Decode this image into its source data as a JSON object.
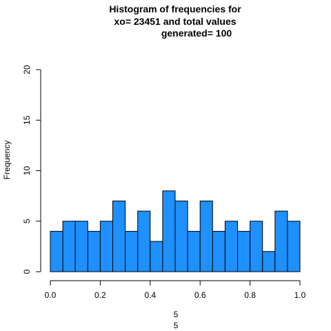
{
  "chart_data": {
    "type": "bar",
    "title_lines": [
      "Histogram of frequencies for",
      "xo= 23451  and total values",
      "generated= 100"
    ],
    "xlabel_lines": [
      "5",
      "5"
    ],
    "ylabel": "Frequency",
    "bin_edges": [
      0.0,
      0.05,
      0.1,
      0.15,
      0.2,
      0.25,
      0.3,
      0.35,
      0.4,
      0.45,
      0.5,
      0.55,
      0.6,
      0.65,
      0.7,
      0.75,
      0.8,
      0.85,
      0.9,
      0.95,
      1.0
    ],
    "values": [
      4,
      5,
      5,
      4,
      5,
      7,
      4,
      6,
      3,
      8,
      7,
      4,
      7,
      4,
      5,
      4,
      5,
      2,
      6,
      5
    ],
    "xlim": [
      0,
      1
    ],
    "ylim": [
      0,
      20
    ],
    "x_ticks": [
      "0.0",
      "0.2",
      "0.4",
      "0.6",
      "0.8",
      "1.0"
    ],
    "y_ticks": [
      "0",
      "5",
      "10",
      "15",
      "20"
    ],
    "bar_color": "#1E90FF",
    "bar_edge_color": "#000000",
    "grid": false
  }
}
